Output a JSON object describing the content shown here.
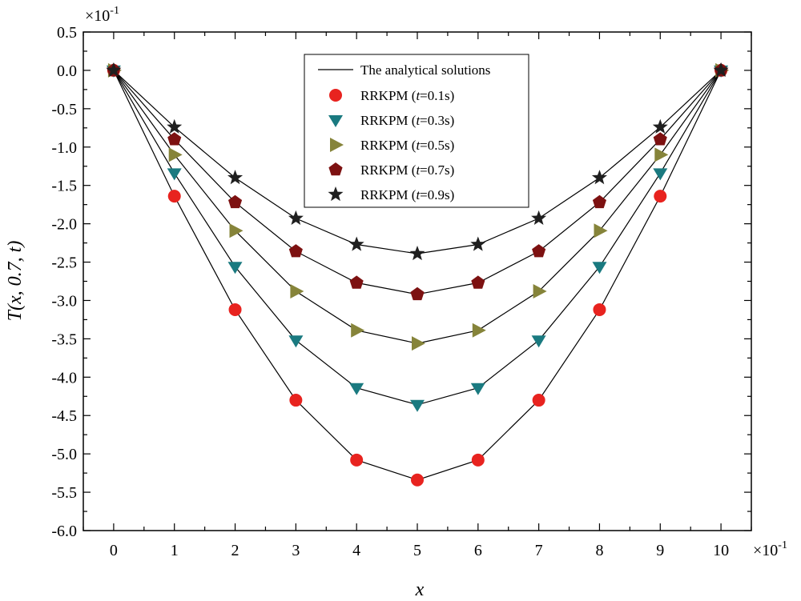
{
  "chart_data": {
    "type": "line",
    "title": "",
    "xlabel": "x",
    "ylabel": "T(x, 0.7, t)",
    "x_multiplier": "×10",
    "x_multiplier_exp": "-1",
    "y_multiplier": "×10",
    "y_multiplier_exp": "-1",
    "xlim": [
      -0.5,
      10.5
    ],
    "ylim": [
      -6.0,
      0.5
    ],
    "xticks": [
      "0",
      "1",
      "2",
      "3",
      "4",
      "5",
      "6",
      "7",
      "8",
      "9",
      "10"
    ],
    "yticks": [
      "0.5",
      "0.0",
      "-0.5",
      "-1.0",
      "-1.5",
      "-2.0",
      "-2.5",
      "-3.0",
      "-3.5",
      "-4.0",
      "-4.5",
      "-5.0",
      "-5.5",
      "-6.0"
    ],
    "x": [
      0,
      1,
      2,
      3,
      4,
      5,
      6,
      7,
      8,
      9,
      10
    ],
    "analytical_label": "The analytical solutions",
    "legend_position": "top-center",
    "series": [
      {
        "name": "RRKPM (t=0.1s)",
        "prefix": "RRKPM (",
        "var": "t",
        "suffix": "=0.1s)",
        "marker": "circle",
        "color": "#e8231f",
        "values": [
          0.0,
          -1.64,
          -3.12,
          -4.3,
          -5.08,
          -5.34,
          -5.08,
          -4.3,
          -3.12,
          -1.64,
          0.0
        ]
      },
      {
        "name": "RRKPM (t=0.3s)",
        "prefix": "RRKPM (",
        "var": "t",
        "suffix": "=0.3s)",
        "marker": "triangle-down",
        "color": "#1a7a80",
        "values": [
          0.0,
          -1.34,
          -2.56,
          -3.52,
          -4.14,
          -4.36,
          -4.14,
          -3.52,
          -2.56,
          -1.34,
          0.0
        ]
      },
      {
        "name": "RRKPM (t=0.5s)",
        "prefix": "RRKPM (",
        "var": "t",
        "suffix": "=0.5s)",
        "marker": "triangle-right",
        "color": "#86843a",
        "values": [
          0.0,
          -1.1,
          -2.09,
          -2.88,
          -3.39,
          -3.56,
          -3.39,
          -2.88,
          -2.09,
          -1.1,
          0.0
        ]
      },
      {
        "name": "RRKPM (t=0.7s)",
        "prefix": "RRKPM (",
        "var": "t",
        "suffix": "=0.7s)",
        "marker": "pentagon",
        "color": "#7d1111",
        "values": [
          0.0,
          -0.9,
          -1.72,
          -2.36,
          -2.77,
          -2.92,
          -2.77,
          -2.36,
          -1.72,
          -0.9,
          0.0
        ]
      },
      {
        "name": "RRKPM (t=0.9s)",
        "prefix": "RRKPM (",
        "var": "t",
        "suffix": "=0.9s)",
        "marker": "star",
        "color": "#1f1f1f",
        "values": [
          0.0,
          -0.74,
          -1.4,
          -1.93,
          -2.27,
          -2.39,
          -2.27,
          -1.93,
          -1.4,
          -0.74,
          0.0
        ]
      }
    ]
  }
}
